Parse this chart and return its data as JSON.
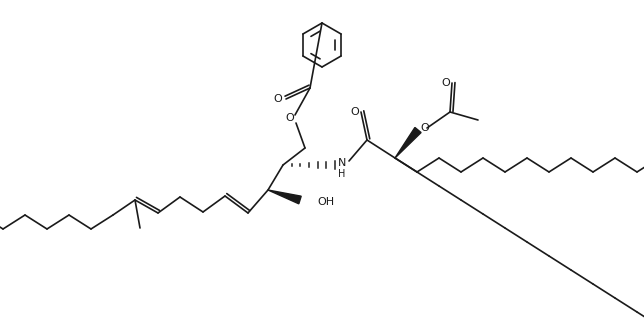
{
  "bg_color": "#ffffff",
  "line_color": "#1a1a1a",
  "line_width": 1.2,
  "figsize": [
    6.44,
    3.24
  ],
  "dpi": 100,
  "xlim": [
    0,
    644
  ],
  "ylim": [
    0,
    324
  ]
}
